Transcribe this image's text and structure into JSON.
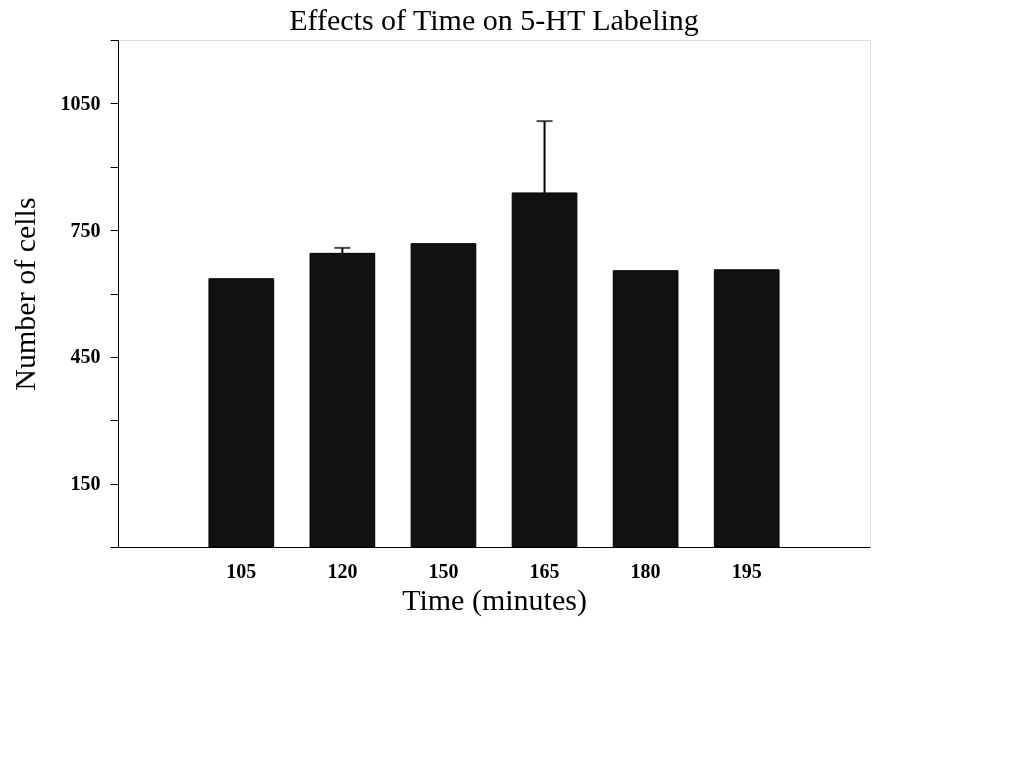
{
  "chart_data": {
    "type": "bar",
    "title": "Effects of Time on 5-HT Labeling",
    "xlabel": "Time (minutes)",
    "ylabel": "Number of cells",
    "categories": [
      "105",
      "120",
      "150",
      "165",
      "180",
      "195"
    ],
    "values": [
      635,
      695,
      718,
      838,
      654,
      656
    ],
    "errors": [
      null,
      [
        695,
        708
      ],
      null,
      [
        838,
        1008
      ],
      null,
      null
    ],
    "color": "#111111",
    "ylim": [
      0,
      1200
    ],
    "yticks": [
      {
        "value": 0,
        "label": null
      },
      150,
      {
        "value": 300,
        "label": null
      },
      450,
      {
        "value": 600,
        "label": null
      },
      750,
      {
        "value": 900,
        "label": null
      },
      1050,
      {
        "value": 1200,
        "label": null
      }
    ],
    "grid": false
  }
}
